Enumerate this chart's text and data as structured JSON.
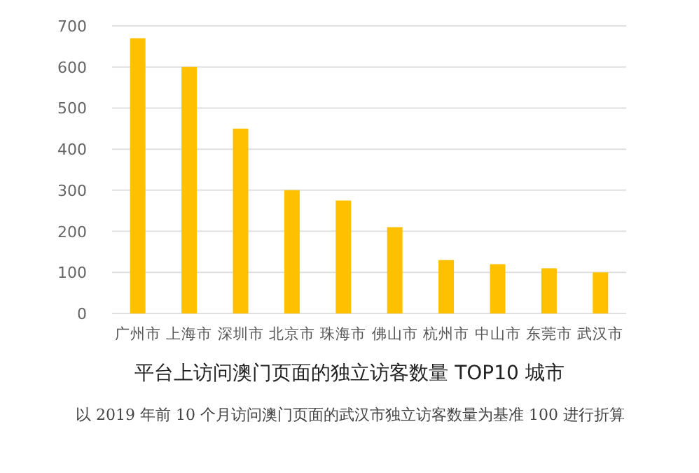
{
  "chart_data": {
    "type": "bar",
    "title": "平台上访问澳门页面的独立访客数量 TOP10 城市",
    "annotations": [
      "以 2019 年前 10 个月访问澳门页面的武汉市独立访客数量为基准 100 进行折算"
    ],
    "categories": [
      "广州市",
      "上海市",
      "深圳市",
      "北京市",
      "珠海市",
      "佛山市",
      "杭州市",
      "中山市",
      "东莞市",
      "武汉市"
    ],
    "values": [
      670,
      600,
      450,
      300,
      275,
      210,
      130,
      120,
      110,
      100
    ],
    "color": "#ffc000",
    "ylim": [
      0,
      700
    ],
    "yticks": [
      0,
      100,
      200,
      300,
      400,
      500,
      600,
      700
    ],
    "grid": "y"
  }
}
